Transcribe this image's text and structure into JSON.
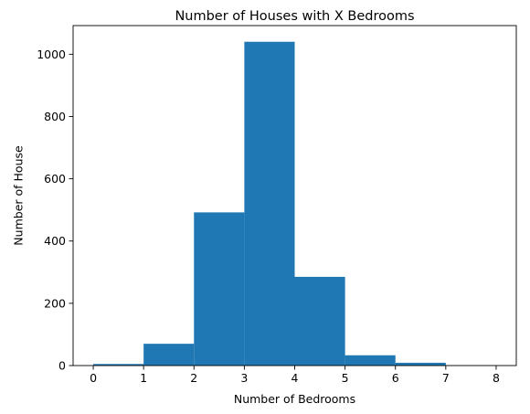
{
  "chart_data": {
    "type": "bar",
    "title": "Number of Houses with X Bedrooms",
    "xlabel": "Number of Bedrooms",
    "ylabel": "Number of House",
    "bins": [
      {
        "start": 0,
        "end": 1,
        "count": 5
      },
      {
        "start": 1,
        "end": 2,
        "count": 70
      },
      {
        "start": 2,
        "end": 3,
        "count": 492
      },
      {
        "start": 3,
        "end": 4,
        "count": 1040
      },
      {
        "start": 4,
        "end": 5,
        "count": 285
      },
      {
        "start": 5,
        "end": 6,
        "count": 33
      },
      {
        "start": 6,
        "end": 7,
        "count": 9
      },
      {
        "start": 7,
        "end": 8,
        "count": 1
      }
    ],
    "xlim": [
      -0.4,
      8.4
    ],
    "ylim": [
      0,
      1092
    ],
    "xticks": [
      0,
      1,
      2,
      3,
      4,
      5,
      6,
      7,
      8
    ],
    "yticks": [
      0,
      200,
      400,
      600,
      800,
      1000
    ],
    "bar_color": "#1f77b4",
    "grid": false,
    "legend": "none"
  }
}
